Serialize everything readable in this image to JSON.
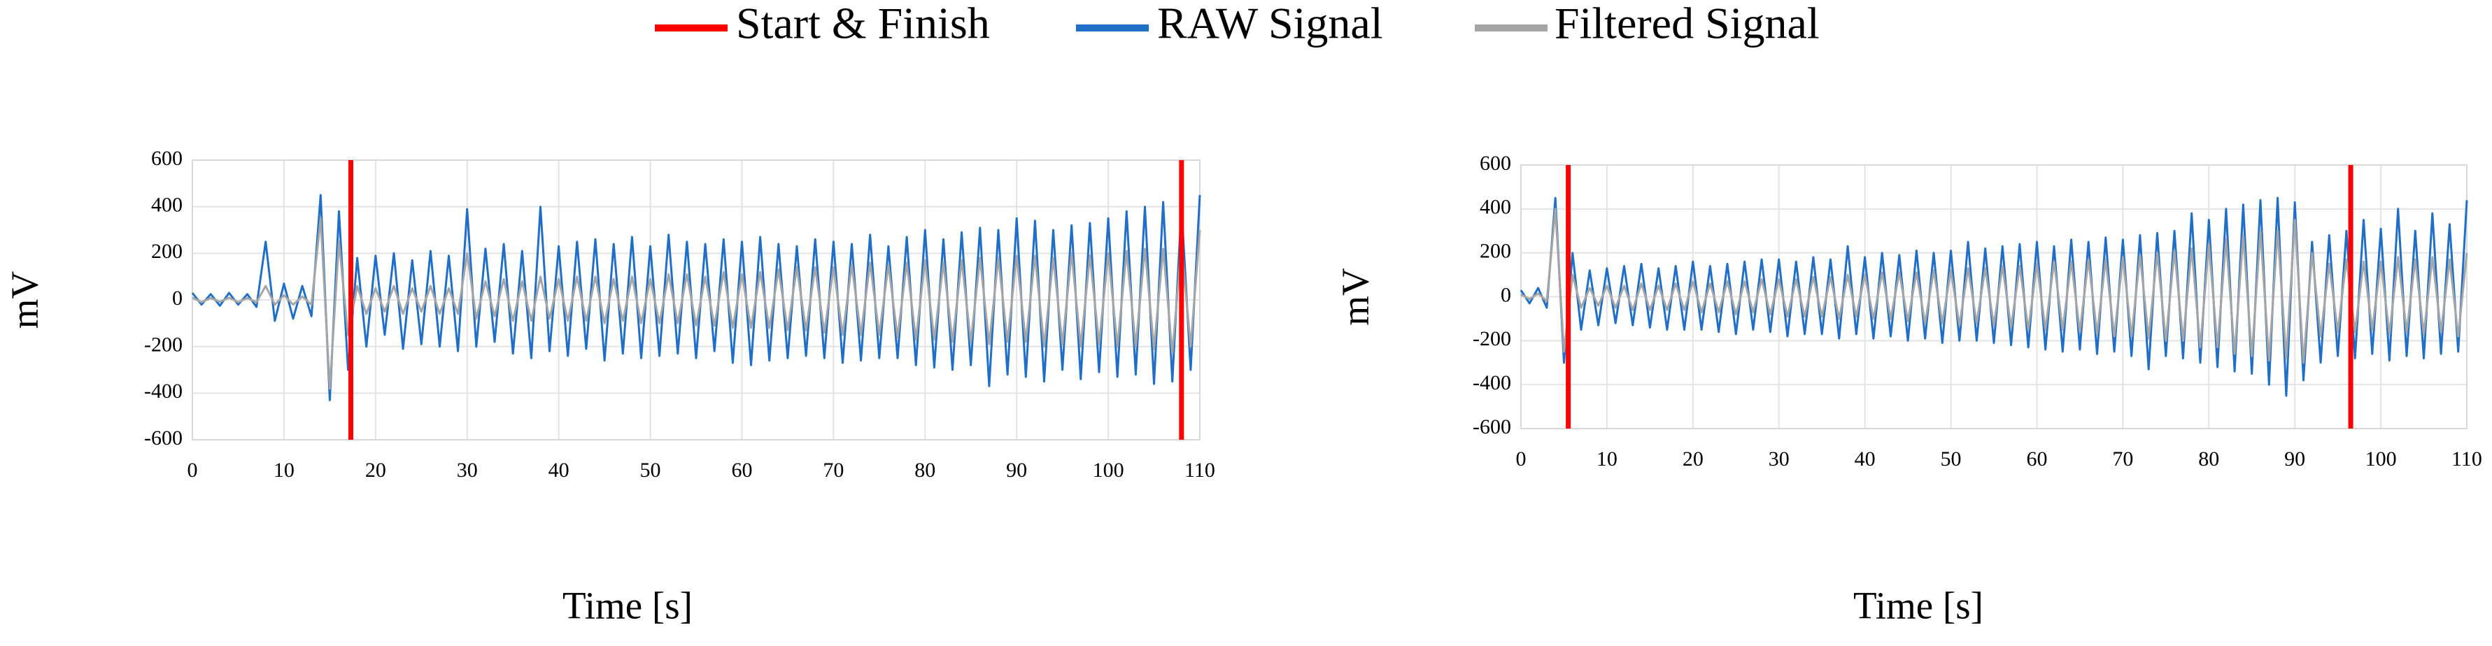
{
  "chart_data": [
    {
      "type": "line",
      "ylabel": "mV",
      "xlabel": "Time [s]",
      "xlim": [
        0,
        110
      ],
      "xticks": [
        0,
        10,
        20,
        30,
        40,
        50,
        60,
        70,
        80,
        90,
        100,
        110
      ],
      "ylim": [
        -600,
        600
      ],
      "yticks": [
        -600,
        -400,
        -200,
        0,
        200,
        400,
        600
      ],
      "grid": true,
      "vlines": {
        "name": "Start & Finish",
        "color": "#ff0000",
        "x": [
          17.3,
          108
        ]
      },
      "x": [
        0,
        1,
        2,
        3,
        4,
        5,
        6,
        7,
        8,
        9,
        10,
        11,
        12,
        13,
        14,
        15,
        16,
        17,
        18,
        19,
        20,
        21,
        22,
        23,
        24,
        25,
        26,
        27,
        28,
        29,
        30,
        31,
        32,
        33,
        34,
        35,
        36,
        37,
        38,
        39,
        40,
        41,
        42,
        43,
        44,
        45,
        46,
        47,
        48,
        49,
        50,
        51,
        52,
        53,
        54,
        55,
        56,
        57,
        58,
        59,
        60,
        61,
        62,
        63,
        64,
        65,
        66,
        67,
        68,
        69,
        70,
        71,
        72,
        73,
        74,
        75,
        76,
        77,
        78,
        79,
        80,
        81,
        82,
        83,
        84,
        85,
        86,
        87,
        88,
        89,
        90,
        91,
        92,
        93,
        94,
        95,
        96,
        97,
        98,
        99,
        100,
        101,
        102,
        103,
        104,
        105,
        106,
        107,
        108,
        109,
        110
      ],
      "series": [
        {
          "name": "RAW Signal",
          "color": "#1f6fc9",
          "values": [
            30,
            -20,
            25,
            -25,
            30,
            -20,
            25,
            -30,
            250,
            -90,
            70,
            -80,
            60,
            -70,
            450,
            -430,
            380,
            -300,
            180,
            -200,
            190,
            -150,
            200,
            -210,
            170,
            -190,
            210,
            -200,
            190,
            -220,
            390,
            -200,
            220,
            -180,
            240,
            -230,
            210,
            -250,
            400,
            -220,
            230,
            -240,
            250,
            -210,
            260,
            -260,
            240,
            -230,
            270,
            -250,
            230,
            -240,
            280,
            -230,
            250,
            -250,
            240,
            -220,
            260,
            -270,
            250,
            -280,
            270,
            -260,
            240,
            -250,
            230,
            -240,
            260,
            -250,
            250,
            -270,
            240,
            -260,
            280,
            -250,
            230,
            -250,
            270,
            -280,
            300,
            -290,
            260,
            -300,
            290,
            -280,
            310,
            -370,
            300,
            -320,
            350,
            -330,
            340,
            -350,
            300,
            -300,
            320,
            -340,
            330,
            -310,
            350,
            -330,
            380,
            -320,
            400,
            -360,
            420,
            -350,
            400,
            -300,
            450
          ]
        },
        {
          "name": "Filtered Signal",
          "color": "#a5a5a5",
          "values": [
            10,
            -10,
            8,
            -8,
            10,
            -10,
            8,
            -10,
            60,
            -20,
            20,
            -20,
            15,
            -20,
            350,
            -380,
            250,
            -150,
            60,
            -60,
            50,
            -50,
            60,
            -60,
            50,
            -50,
            60,
            -60,
            50,
            -60,
            200,
            -80,
            80,
            -70,
            90,
            -90,
            80,
            -90,
            100,
            -80,
            90,
            -90,
            100,
            -90,
            100,
            -100,
            90,
            -90,
            100,
            -100,
            90,
            -100,
            110,
            -100,
            110,
            -110,
            100,
            -110,
            120,
            -120,
            110,
            -120,
            120,
            -120,
            130,
            -130,
            140,
            -130,
            140,
            -140,
            140,
            -150,
            150,
            -150,
            160,
            -150,
            150,
            -160,
            160,
            -170,
            170,
            -170,
            160,
            -180,
            170,
            -180,
            180,
            -190,
            180,
            -180,
            190,
            -180,
            190,
            -200,
            180,
            -190,
            200,
            -200,
            190,
            -190,
            200,
            -200,
            210,
            -200,
            220,
            -210,
            220,
            -230,
            240,
            -200,
            300
          ]
        }
      ]
    },
    {
      "type": "line",
      "ylabel": "mV",
      "xlabel": "Time [s]",
      "xlim": [
        0,
        110
      ],
      "xticks": [
        0,
        10,
        20,
        30,
        40,
        50,
        60,
        70,
        80,
        90,
        100,
        110
      ],
      "ylim": [
        -600,
        600
      ],
      "yticks": [
        -600,
        -400,
        -200,
        0,
        200,
        400,
        600
      ],
      "grid": true,
      "vlines": {
        "color": "#ff0000",
        "x": [
          5.5,
          96.5
        ]
      },
      "x": [
        0,
        1,
        2,
        3,
        4,
        5,
        6,
        7,
        8,
        9,
        10,
        11,
        12,
        13,
        14,
        15,
        16,
        17,
        18,
        19,
        20,
        21,
        22,
        23,
        24,
        25,
        26,
        27,
        28,
        29,
        30,
        31,
        32,
        33,
        34,
        35,
        36,
        37,
        38,
        39,
        40,
        41,
        42,
        43,
        44,
        45,
        46,
        47,
        48,
        49,
        50,
        51,
        52,
        53,
        54,
        55,
        56,
        57,
        58,
        59,
        60,
        61,
        62,
        63,
        64,
        65,
        66,
        67,
        68,
        69,
        70,
        71,
        72,
        73,
        74,
        75,
        76,
        77,
        78,
        79,
        80,
        81,
        82,
        83,
        84,
        85,
        86,
        87,
        88,
        89,
        90,
        91,
        92,
        93,
        94,
        95,
        96,
        97,
        98,
        99,
        100,
        101,
        102,
        103,
        104,
        105,
        106,
        107,
        108,
        109,
        110
      ],
      "series": [
        {
          "color": "#1f6fc9",
          "values": [
            30,
            -30,
            40,
            -50,
            450,
            -300,
            200,
            -150,
            120,
            -130,
            130,
            -120,
            140,
            -130,
            150,
            -140,
            130,
            -150,
            140,
            -150,
            160,
            -150,
            140,
            -160,
            150,
            -170,
            160,
            -150,
            170,
            -160,
            170,
            -180,
            160,
            -170,
            180,
            -170,
            170,
            -190,
            230,
            -170,
            180,
            -190,
            200,
            -180,
            190,
            -200,
            210,
            -190,
            200,
            -210,
            210,
            -200,
            250,
            -200,
            220,
            -210,
            230,
            -220,
            240,
            -230,
            250,
            -240,
            230,
            -250,
            260,
            -240,
            250,
            -260,
            270,
            -250,
            260,
            -270,
            280,
            -330,
            290,
            -270,
            300,
            -280,
            380,
            -300,
            350,
            -320,
            400,
            -340,
            420,
            -350,
            440,
            -400,
            450,
            -450,
            430,
            -380,
            250,
            -300,
            280,
            -270,
            300,
            -280,
            350,
            -260,
            310,
            -290,
            400,
            -270,
            300,
            -280,
            380,
            -260,
            330,
            -250,
            440
          ]
        },
        {
          "color": "#a5a5a5",
          "values": [
            10,
            -10,
            15,
            -20,
            400,
            -250,
            100,
            -50,
            40,
            -40,
            50,
            -50,
            50,
            -60,
            60,
            -60,
            50,
            -60,
            60,
            -60,
            70,
            -70,
            60,
            -70,
            70,
            -80,
            70,
            -70,
            80,
            -80,
            80,
            -90,
            80,
            -90,
            90,
            -90,
            90,
            -100,
            100,
            -90,
            100,
            -100,
            110,
            -100,
            110,
            -110,
            110,
            -120,
            120,
            -120,
            120,
            -130,
            130,
            -120,
            130,
            -130,
            140,
            -140,
            140,
            -150,
            150,
            -150,
            160,
            -150,
            160,
            -160,
            170,
            -170,
            170,
            -180,
            180,
            -180,
            190,
            -190,
            200,
            -200,
            210,
            -200,
            220,
            -230,
            240,
            -230,
            260,
            -260,
            280,
            -270,
            300,
            -290,
            300,
            -280,
            350,
            -300,
            200,
            -180,
            150,
            -160,
            170,
            -160,
            160,
            -150,
            160,
            -170,
            180,
            -160,
            170,
            -170,
            180,
            -160,
            170,
            -180,
            200
          ]
        }
      ]
    }
  ]
}
